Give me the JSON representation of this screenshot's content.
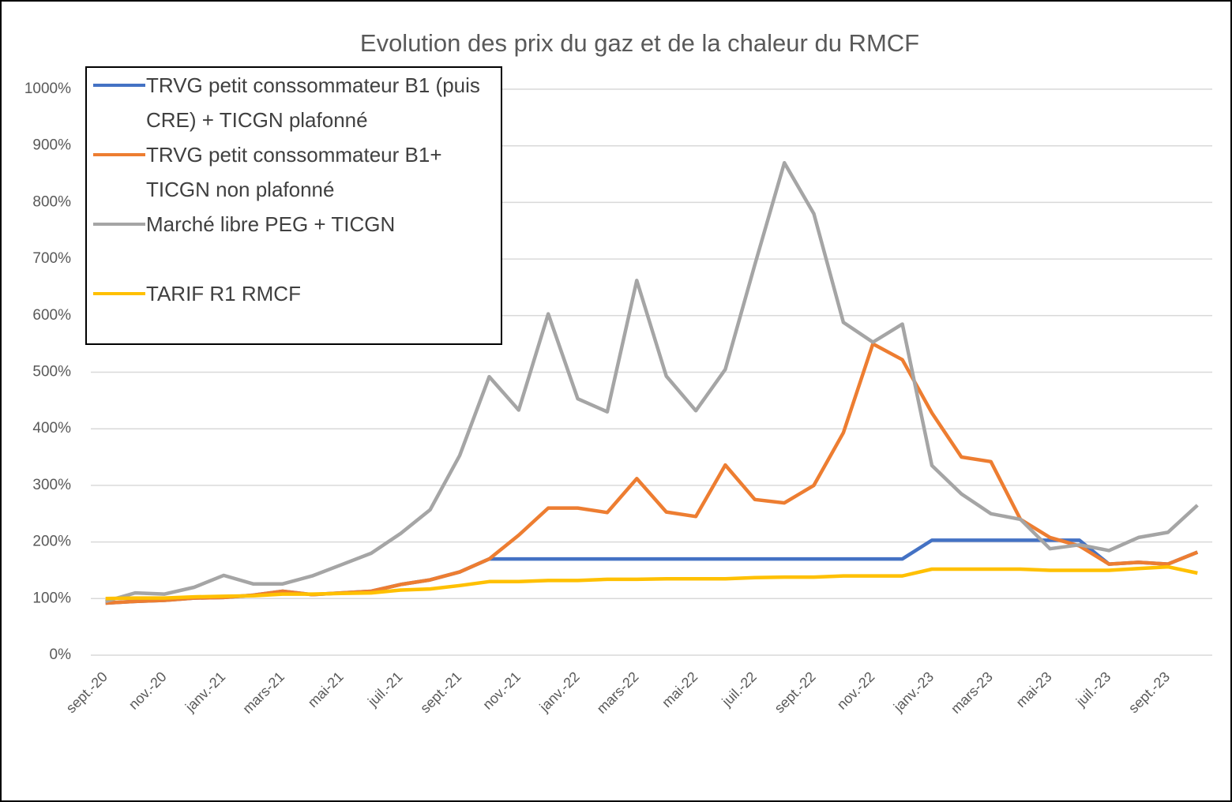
{
  "chart_data": {
    "type": "line",
    "title": "Evolution des prix du gaz et de la chaleur du RMCF",
    "categories": [
      "sept.-20",
      null,
      "nov.-20",
      null,
      "janv.-21",
      null,
      "mars-21",
      null,
      "mai-21",
      null,
      "juil.-21",
      null,
      "sept.-21",
      null,
      "nov.-21",
      null,
      "janv.-22",
      null,
      "mars-22",
      null,
      "mai-22",
      null,
      "juil.-22",
      null,
      "sept.-22",
      null,
      "nov.-22",
      null,
      "janv.-23",
      null,
      "mars-23",
      null,
      "mai-23",
      null,
      "juil.-23",
      null,
      "sept.-23",
      null
    ],
    "series": [
      {
        "name": "TRVG petit conssommateur B1 (puis CRE) + TICGN plafonné",
        "color": "#4472c4",
        "values": [
          92,
          95,
          97,
          101,
          102,
          106,
          113,
          107,
          110,
          113,
          125,
          133,
          147,
          170,
          170,
          170,
          170,
          170,
          170,
          170,
          170,
          170,
          170,
          170,
          170,
          170,
          170,
          170,
          203,
          203,
          203,
          203,
          203,
          203,
          161,
          164,
          161,
          182
        ]
      },
      {
        "name": "TRVG petit conssommateur B1+ TICGN non plafonné",
        "color": "#ed7d31",
        "values": [
          92,
          95,
          97,
          101,
          102,
          106,
          113,
          107,
          110,
          113,
          125,
          133,
          147,
          170,
          212,
          260,
          260,
          252,
          312,
          253,
          245,
          336,
          275,
          269,
          300,
          393,
          550,
          522,
          428,
          350,
          342,
          240,
          208,
          193,
          161,
          164,
          161,
          182
        ]
      },
      {
        "name": "Marché libre PEG + TICGN",
        "color": "#a5a5a5",
        "values": [
          95,
          110,
          108,
          120,
          141,
          126,
          126,
          140,
          160,
          180,
          215,
          257,
          353,
          492,
          433,
          603,
          453,
          430,
          662,
          493,
          432,
          505,
          690,
          870,
          780,
          588,
          553,
          585,
          335,
          285,
          250,
          240,
          188,
          195,
          185,
          208,
          217,
          265
        ]
      },
      {
        "name": "TARIF R1 RMCF",
        "color": "#ffc000",
        "values": [
          100,
          101,
          101,
          103,
          104,
          105,
          108,
          108,
          109,
          110,
          115,
          117,
          123,
          130,
          130,
          132,
          132,
          134,
          134,
          135,
          135,
          135,
          137,
          138,
          138,
          140,
          140,
          140,
          152,
          152,
          152,
          152,
          150,
          150,
          150,
          153,
          156,
          145
        ]
      }
    ],
    "ylim": [
      0,
      1000
    ],
    "yticks": [
      {
        "value": 0,
        "label": "0%"
      },
      {
        "value": 100,
        "label": "100%"
      },
      {
        "value": 200,
        "label": "200%"
      },
      {
        "value": 300,
        "label": "300%"
      },
      {
        "value": 400,
        "label": "400%"
      },
      {
        "value": 500,
        "label": "500%"
      },
      {
        "value": 600,
        "label": "600%"
      },
      {
        "value": 700,
        "label": "700%"
      },
      {
        "value": 800,
        "label": "800%"
      },
      {
        "value": 900,
        "label": "900%"
      },
      {
        "value": 1000,
        "label": "1000%"
      }
    ],
    "grid": true
  }
}
